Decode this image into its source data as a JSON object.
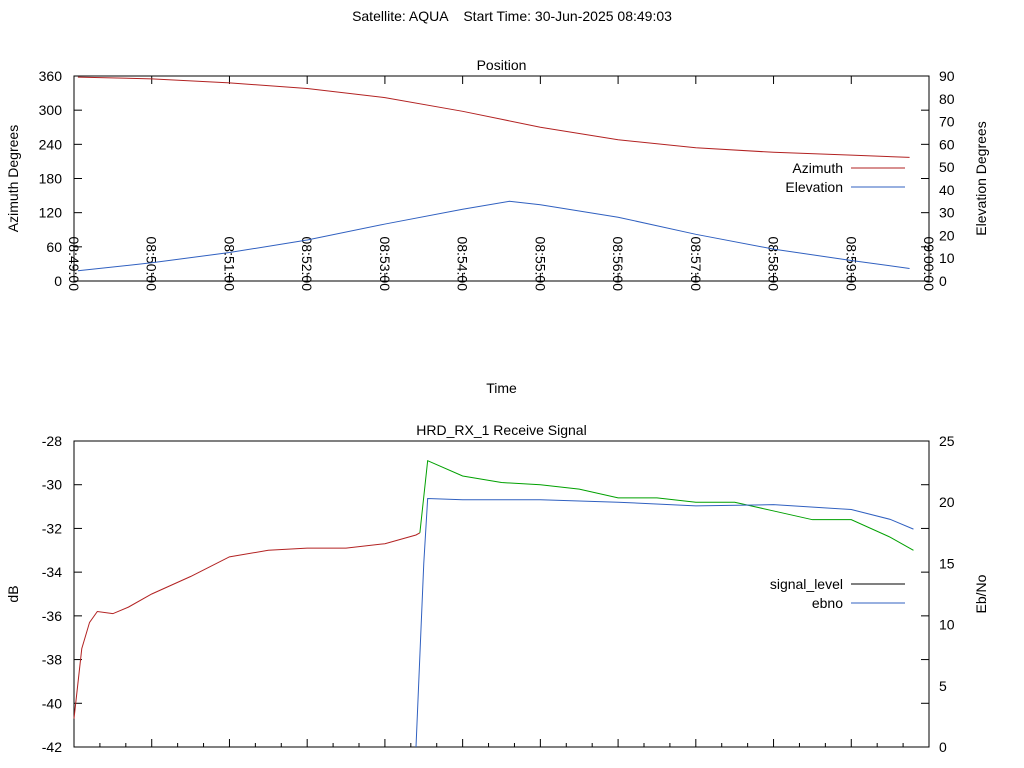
{
  "header": {
    "title": "Satellite: AQUA    Start Time: 30-Jun-2025 08:49:03"
  },
  "chart_data": [
    {
      "type": "line",
      "title": "Position",
      "xlabel": "Time",
      "ylabel": "Azimuth Degrees",
      "y2label": "Elevation Degrees",
      "xticks": [
        "08:49:00",
        "08:50:00",
        "08:51:00",
        "08:52:00",
        "08:53:00",
        "08:54:00",
        "08:55:00",
        "08:56:00",
        "08:57:00",
        "08:58:00",
        "08:59:00",
        "09:00:00"
      ],
      "xlim": [
        0,
        11
      ],
      "ylim": [
        0,
        360
      ],
      "yticks": [
        0,
        60,
        120,
        180,
        240,
        300,
        360
      ],
      "y2lim": [
        0,
        90
      ],
      "y2ticks": [
        0,
        10,
        20,
        30,
        40,
        50,
        60,
        70,
        80,
        90
      ],
      "legend_position": "right",
      "series": [
        {
          "name": "Azimuth",
          "axis": "y",
          "color": "#b22222",
          "x": [
            0.05,
            1,
            2,
            3,
            4,
            5,
            5.5,
            6,
            7,
            8,
            9,
            10,
            10.75
          ],
          "values": [
            358,
            355,
            348,
            338,
            322,
            298,
            284,
            270,
            248,
            234,
            226,
            221,
            217
          ]
        },
        {
          "name": "Elevation",
          "axis": "y2",
          "color": "#3060c0",
          "x": [
            0.05,
            1,
            2,
            3,
            4,
            5,
            5.6,
            6,
            7,
            8,
            9,
            10,
            10.75
          ],
          "values": [
            4.5,
            8,
            12.5,
            18,
            25,
            31.5,
            35,
            33.5,
            28,
            20.5,
            14,
            9,
            5.5
          ]
        }
      ]
    },
    {
      "type": "line",
      "title": "HRD_RX_1 Receive Signal",
      "xlabel": "",
      "ylabel": "dB",
      "y2label": "Eb/No",
      "xlim": [
        0,
        11
      ],
      "ylim": [
        -42,
        -28
      ],
      "yticks": [
        -42,
        -40,
        -38,
        -36,
        -34,
        -32,
        -30,
        -28
      ],
      "y2lim": [
        0,
        25
      ],
      "y2ticks": [
        0,
        5,
        10,
        15,
        20,
        25
      ],
      "legend_position": "right",
      "series": [
        {
          "name": "signal_level",
          "axis": "y",
          "color": "#b22222",
          "segment_color": "#00a000",
          "segment_from_x": 4.5,
          "x": [
            0,
            0.1,
            0.2,
            0.3,
            0.5,
            0.7,
            1,
            1.5,
            2,
            2.5,
            3,
            3.5,
            4,
            4.4,
            4.45,
            4.55,
            5,
            5.5,
            6,
            6.5,
            7,
            7.5,
            8,
            8.5,
            9,
            9.5,
            10,
            10.5,
            10.8
          ],
          "values": [
            -40.7,
            -37.5,
            -36.3,
            -35.8,
            -35.9,
            -35.6,
            -35.0,
            -34.2,
            -33.3,
            -33.0,
            -32.9,
            -32.9,
            -32.7,
            -32.3,
            -32.2,
            -28.9,
            -29.6,
            -29.9,
            -30.0,
            -30.2,
            -30.6,
            -30.6,
            -30.8,
            -30.8,
            -31.2,
            -31.6,
            -31.6,
            -32.4,
            -33.0
          ]
        },
        {
          "name": "ebno",
          "axis": "y2",
          "color": "#3060c0",
          "x": [
            4.4,
            4.5,
            4.55,
            5,
            6,
            7,
            8,
            9,
            10,
            10.5,
            10.8
          ],
          "values": [
            0,
            15,
            20.3,
            20.2,
            20.2,
            20.0,
            19.7,
            19.8,
            19.4,
            18.6,
            17.8
          ]
        }
      ]
    }
  ]
}
